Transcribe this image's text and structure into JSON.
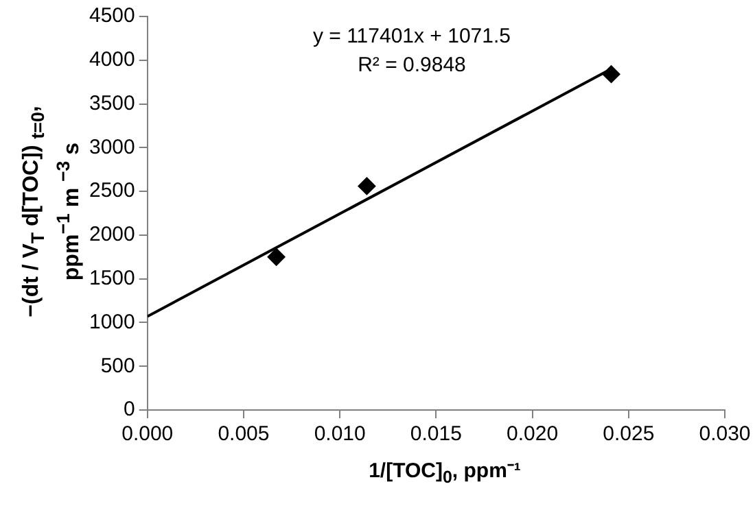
{
  "chart_data": {
    "type": "scatter",
    "xlabel": "1/[TOC]$_{0}$, ppm⁻¹",
    "ylabel": "−(dt / V$_{T}$ d[TOC]) $_{t=0}$,\nppm$^{−1}$ m $^{−3}$ s",
    "annotations": [
      "y = 117401x + 1071.5",
      "R² = 0.9848"
    ],
    "series": [
      {
        "color": "#000000",
        "x": [
          0.0067,
          0.0114,
          0.0241
        ],
        "values": [
          1750,
          2560,
          3840
        ],
        "marker": "diamond"
      },
      {
        "type": "line",
        "color": "#000000",
        "x": [
          0,
          0.0241
        ],
        "values": [
          1070,
          3900
        ],
        "marker": "none"
      }
    ],
    "xlim": [
      0,
      0.03
    ],
    "xticks": [
      {
        "value": 0,
        "label": "0.000"
      },
      {
        "value": 0.005,
        "label": "0.005"
      },
      {
        "value": 0.01,
        "label": "0.010"
      },
      {
        "value": 0.015,
        "label": "0.015"
      },
      {
        "value": 0.02,
        "label": "0.020"
      },
      {
        "value": 0.025,
        "label": "0.025"
      },
      {
        "value": 0.03,
        "label": "0.030"
      }
    ],
    "ylim": [
      0,
      4500
    ],
    "yticks": [
      0,
      500,
      1000,
      1500,
      2000,
      2500,
      3000,
      3500,
      4000,
      4500
    ],
    "grid": false,
    "legend": false
  }
}
